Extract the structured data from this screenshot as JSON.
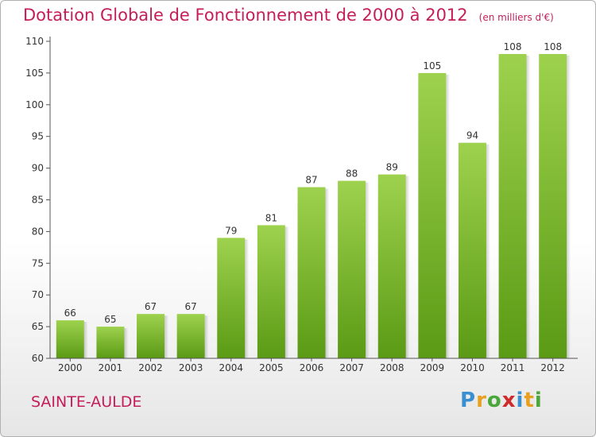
{
  "header": {
    "title": "Dotation Globale de Fonctionnement de 2000 à 2012",
    "unit": "(en milliers d'€)"
  },
  "footer": {
    "commune": "SAINTE-AULDE",
    "logo_letters": [
      "P",
      "r",
      "o",
      "x",
      "i",
      "t",
      "i"
    ],
    "logo_colors": [
      "#3a8fd0",
      "#e8a020",
      "#4aa83a",
      "#d02a2a",
      "#3a8fd0",
      "#e8a020",
      "#4aa83a"
    ]
  },
  "chart_data": {
    "type": "bar",
    "title": "Dotation Globale de Fonctionnement de 2000 à 2012",
    "subtitle": "(en milliers d'€)",
    "categories": [
      "2000",
      "2001",
      "2002",
      "2003",
      "2004",
      "2005",
      "2006",
      "2007",
      "2008",
      "2009",
      "2010",
      "2011",
      "2012"
    ],
    "values": [
      66,
      65,
      67,
      67,
      79,
      81,
      87,
      88,
      89,
      105,
      94,
      108,
      108
    ],
    "ylim": [
      60,
      110
    ],
    "yticks": [
      60,
      65,
      70,
      75,
      80,
      85,
      90,
      95,
      100,
      105,
      110
    ],
    "grid": false,
    "bar_color_top": "#9ed24e",
    "bar_color_bottom": "#5a9a14"
  }
}
